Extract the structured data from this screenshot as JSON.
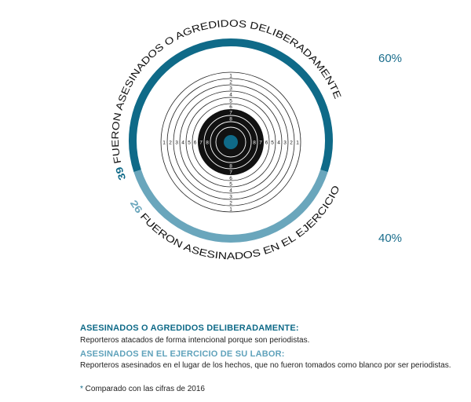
{
  "colors": {
    "dark": "#0f6a88",
    "light": "#6aa6bc",
    "black": "#111111",
    "bullseye": "#0f6a88"
  },
  "segments": [
    {
      "count": "39",
      "label": " FUERON ASESINADOS O AGREDIDOS DELIBERADAMENTE*",
      "percent": "60%",
      "value": 60
    },
    {
      "count": "26",
      "label": " FUERON ASESINADOS EN EL EJERCICIO DE SU LABOR*",
      "percent": "40%",
      "value": 40
    }
  ],
  "target_labels": [
    "1",
    "2",
    "3",
    "4",
    "5",
    "6",
    "7",
    "8"
  ],
  "legend": [
    {
      "heading": "ASESINADOS O AGREDIDOS DELIBERADAMENTE:",
      "text": "Reporteros atacados de forma intencional porque son periodistas."
    },
    {
      "heading": "ASESINADOS EN EL EJERCICIO DE SU LABOR:",
      "text": "Reporteros asesinados en el lugar de los hechos, que no fueron tomados como blanco por ser periodistas."
    }
  ],
  "footnote": {
    "mark": "*",
    "text": " Comparado con las cifras de 2016"
  }
}
